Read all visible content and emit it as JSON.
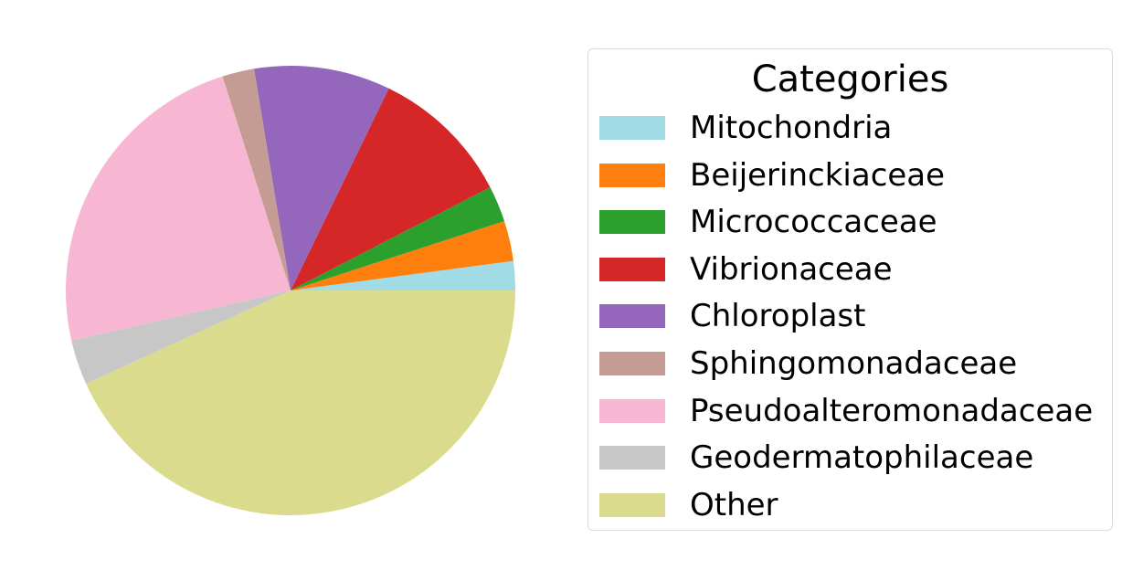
{
  "chart_data": {
    "type": "pie",
    "title": "",
    "legend_title": "Categories",
    "legend_position": "right",
    "start_angle_deg": 0,
    "direction": "counterclockwise",
    "slices": [
      {
        "label": "Mitochondria",
        "value": 2.1,
        "color": "#a0dbe6"
      },
      {
        "label": "Beijerinckiaceae",
        "value": 2.9,
        "color": "#ff7f0e"
      },
      {
        "label": "Micrococcaceae",
        "value": 2.6,
        "color": "#2ca02c"
      },
      {
        "label": "Vibrionaceae",
        "value": 10.2,
        "color": "#d62728"
      },
      {
        "label": "Chloroplast",
        "value": 9.8,
        "color": "#9467bd"
      },
      {
        "label": "Sphingomonadaceae",
        "value": 2.3,
        "color": "#c49c94"
      },
      {
        "label": "Pseudoalteromonadaceae",
        "value": 23.7,
        "color": "#f7b6d2"
      },
      {
        "label": "Geodermatophilaceae",
        "value": 3.2,
        "color": "#c7c7c7"
      },
      {
        "label": "Other",
        "value": 43.2,
        "color": "#dbdb8d"
      }
    ]
  }
}
